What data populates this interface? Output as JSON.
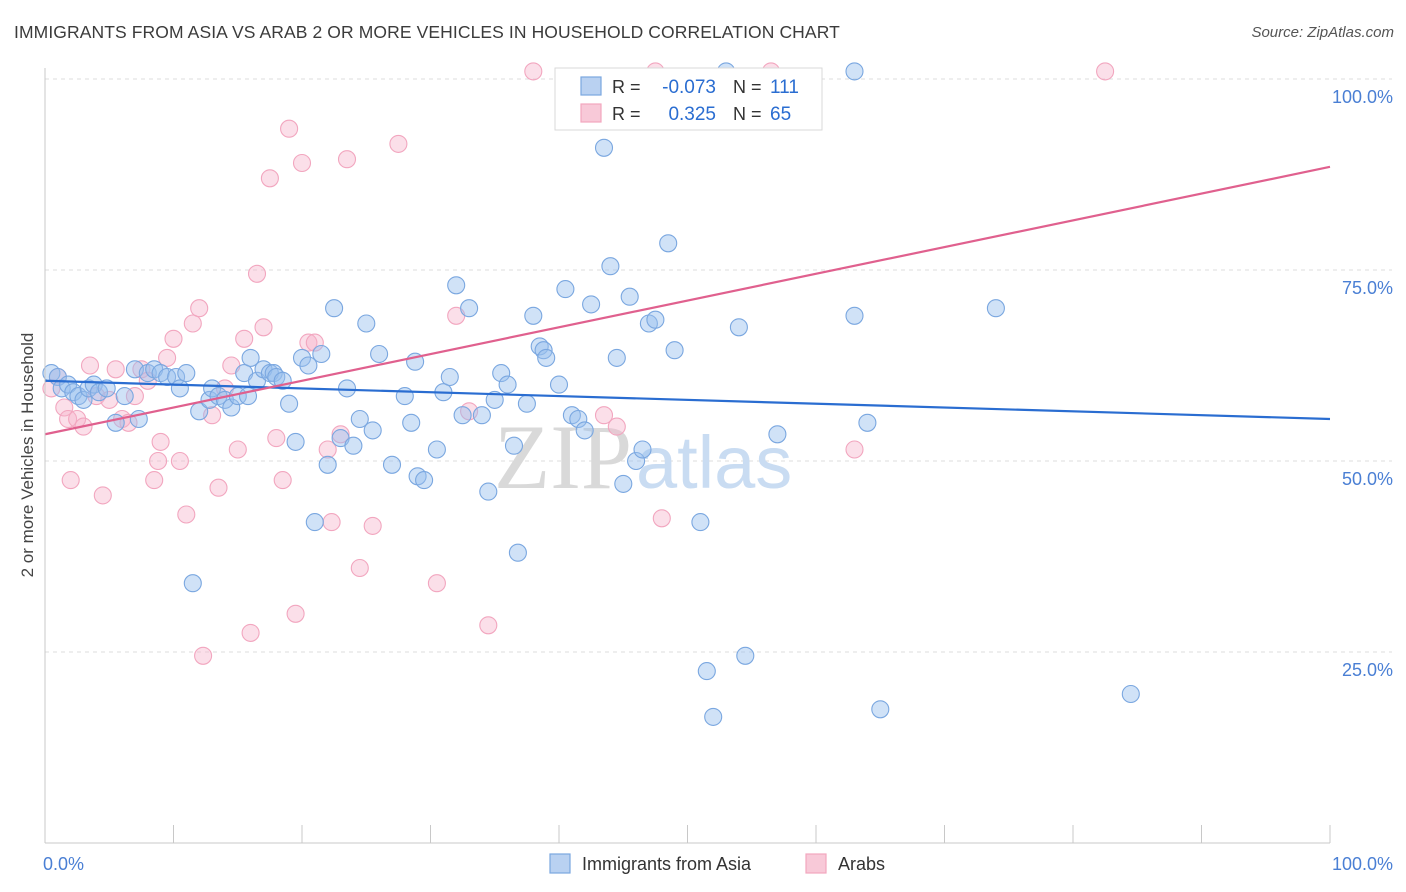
{
  "chart_data": {
    "type": "scatter",
    "title": "IMMIGRANTS FROM ASIA VS ARAB 2 OR MORE VEHICLES IN HOUSEHOLD CORRELATION CHART",
    "source": "Source: ZipAtlas.com",
    "ylabel": "2 or more Vehicles in Household",
    "xlabel": "",
    "xlim": [
      0,
      100
    ],
    "ylim": [
      0,
      100
    ],
    "x_tick_labels": [
      "0.0%",
      "100.0%"
    ],
    "y_tick_labels": [
      "100.0%",
      "75.0%",
      "50.0%",
      "25.0%"
    ],
    "y_ticks": [
      100,
      75,
      50,
      25
    ],
    "grid": true,
    "watermark": "ZIPatlas",
    "legend_top": [
      {
        "label_r": "R =",
        "r": "-0.073",
        "label_n": "N =",
        "n": "111"
      },
      {
        "label_r": "R =",
        "r": "0.325",
        "label_n": "N =",
        "n": "65"
      }
    ],
    "series": [
      {
        "name": "Immigrants from Asia",
        "color": "#7aa7e0",
        "trend_color": "#2a6dd1",
        "trend": {
          "x": [
            0,
            100
          ],
          "y": [
            60.5,
            55.5
          ]
        },
        "points": [
          [
            0.5,
            61.5
          ],
          [
            1.0,
            61.0
          ],
          [
            1.3,
            59.5
          ],
          [
            1.8,
            60.0
          ],
          [
            2.2,
            59.0
          ],
          [
            2.6,
            58.5
          ],
          [
            3.0,
            58.0
          ],
          [
            3.4,
            59.5
          ],
          [
            3.8,
            60.0
          ],
          [
            4.2,
            59.0
          ],
          [
            4.8,
            59.5
          ],
          [
            5.5,
            55.0
          ],
          [
            6.2,
            58.5
          ],
          [
            7.0,
            62.0
          ],
          [
            7.3,
            55.5
          ],
          [
            8.0,
            61.5
          ],
          [
            8.5,
            62.0
          ],
          [
            9.0,
            61.5
          ],
          [
            9.5,
            61.0
          ],
          [
            10.2,
            61.0
          ],
          [
            10.5,
            59.5
          ],
          [
            11.0,
            61.5
          ],
          [
            11.5,
            34.0
          ],
          [
            12.0,
            56.5
          ],
          [
            12.8,
            58.0
          ],
          [
            13.0,
            59.5
          ],
          [
            13.5,
            58.5
          ],
          [
            14.0,
            58.0
          ],
          [
            14.5,
            57.0
          ],
          [
            15.0,
            58.5
          ],
          [
            15.5,
            61.5
          ],
          [
            15.8,
            58.5
          ],
          [
            16.0,
            63.5
          ],
          [
            16.5,
            60.5
          ],
          [
            17.0,
            62.0
          ],
          [
            17.5,
            61.5
          ],
          [
            17.8,
            61.5
          ],
          [
            18.0,
            61.0
          ],
          [
            18.5,
            60.5
          ],
          [
            19.0,
            57.5
          ],
          [
            19.5,
            52.5
          ],
          [
            20.0,
            63.5
          ],
          [
            20.5,
            62.5
          ],
          [
            21.0,
            42.0
          ],
          [
            21.5,
            64.0
          ],
          [
            22.0,
            49.5
          ],
          [
            22.5,
            70.0
          ],
          [
            23.0,
            53.0
          ],
          [
            23.5,
            59.5
          ],
          [
            24.0,
            52.0
          ],
          [
            24.5,
            55.5
          ],
          [
            25.0,
            68.0
          ],
          [
            25.5,
            54.0
          ],
          [
            26.0,
            64.0
          ],
          [
            27.0,
            49.5
          ],
          [
            28.0,
            58.5
          ],
          [
            28.5,
            55.0
          ],
          [
            28.8,
            63.0
          ],
          [
            29.0,
            48.0
          ],
          [
            29.5,
            47.5
          ],
          [
            30.5,
            51.5
          ],
          [
            31.0,
            59.0
          ],
          [
            31.5,
            61.0
          ],
          [
            32.0,
            73.0
          ],
          [
            32.5,
            56.0
          ],
          [
            33.0,
            70.0
          ],
          [
            34.0,
            56.0
          ],
          [
            34.5,
            46.0
          ],
          [
            35.0,
            58.0
          ],
          [
            35.5,
            61.5
          ],
          [
            36.0,
            60.0
          ],
          [
            36.5,
            52.0
          ],
          [
            36.8,
            38.0
          ],
          [
            37.5,
            57.5
          ],
          [
            38.0,
            69.0
          ],
          [
            38.5,
            65.0
          ],
          [
            38.8,
            64.5
          ],
          [
            39.0,
            63.5
          ],
          [
            40.0,
            60.0
          ],
          [
            40.5,
            72.5
          ],
          [
            41.0,
            56.0
          ],
          [
            41.5,
            55.5
          ],
          [
            42.0,
            54.0
          ],
          [
            42.5,
            70.5
          ],
          [
            43.5,
            91.0
          ],
          [
            44.0,
            75.5
          ],
          [
            44.5,
            63.5
          ],
          [
            45.0,
            47.0
          ],
          [
            45.5,
            71.5
          ],
          [
            46.0,
            50.0
          ],
          [
            46.5,
            51.5
          ],
          [
            47.0,
            68.0
          ],
          [
            47.5,
            68.5
          ],
          [
            48.5,
            78.5
          ],
          [
            49.0,
            64.5
          ],
          [
            51.0,
            42.0
          ],
          [
            51.5,
            22.5
          ],
          [
            52.0,
            16.5
          ],
          [
            54.0,
            67.5
          ],
          [
            54.5,
            24.5
          ],
          [
            57.0,
            53.5
          ],
          [
            63.0,
            69.0
          ],
          [
            64.0,
            55.0
          ],
          [
            65.0,
            17.5
          ],
          [
            74.0,
            70.0
          ],
          [
            84.5,
            19.5
          ],
          [
            53.0,
            101.0
          ],
          [
            63.0,
            101.0
          ]
        ]
      },
      {
        "name": "Arabs",
        "color": "#f2a6bf",
        "trend_color": "#e0608e",
        "trend": {
          "x": [
            0,
            100
          ],
          "y": [
            53.5,
            88.5
          ]
        },
        "points": [
          [
            0.5,
            59.5
          ],
          [
            1.0,
            61.0
          ],
          [
            1.5,
            57.0
          ],
          [
            1.8,
            55.5
          ],
          [
            2.0,
            47.5
          ],
          [
            2.5,
            55.5
          ],
          [
            3.0,
            54.5
          ],
          [
            3.5,
            62.5
          ],
          [
            4.0,
            58.5
          ],
          [
            4.5,
            45.5
          ],
          [
            5.0,
            58.0
          ],
          [
            5.5,
            62.0
          ],
          [
            6.0,
            55.5
          ],
          [
            6.5,
            55.0
          ],
          [
            7.0,
            58.5
          ],
          [
            7.5,
            62.0
          ],
          [
            8.0,
            60.5
          ],
          [
            8.5,
            47.5
          ],
          [
            8.8,
            50.0
          ],
          [
            9.0,
            52.5
          ],
          [
            9.5,
            63.5
          ],
          [
            10.0,
            66.0
          ],
          [
            10.5,
            50.0
          ],
          [
            11.0,
            43.0
          ],
          [
            11.5,
            68.0
          ],
          [
            12.0,
            70.0
          ],
          [
            12.3,
            24.5
          ],
          [
            13.0,
            56.0
          ],
          [
            13.5,
            46.5
          ],
          [
            14.0,
            59.5
          ],
          [
            14.5,
            62.5
          ],
          [
            15.0,
            51.5
          ],
          [
            15.5,
            66.0
          ],
          [
            16.0,
            27.5
          ],
          [
            16.5,
            74.5
          ],
          [
            17.0,
            67.5
          ],
          [
            17.5,
            87.0
          ],
          [
            18.0,
            53.0
          ],
          [
            18.5,
            47.5
          ],
          [
            19.0,
            93.5
          ],
          [
            19.5,
            30.0
          ],
          [
            20.0,
            89.0
          ],
          [
            20.5,
            65.5
          ],
          [
            21.0,
            65.5
          ],
          [
            22.0,
            51.5
          ],
          [
            22.3,
            42.0
          ],
          [
            23.0,
            53.5
          ],
          [
            23.5,
            89.5
          ],
          [
            24.5,
            36.0
          ],
          [
            25.5,
            41.5
          ],
          [
            27.5,
            91.5
          ],
          [
            30.5,
            34.0
          ],
          [
            32.0,
            69.0
          ],
          [
            33.0,
            56.5
          ],
          [
            34.5,
            28.5
          ],
          [
            38.0,
            101.0
          ],
          [
            43.5,
            56.0
          ],
          [
            44.5,
            54.5
          ],
          [
            48.0,
            42.5
          ],
          [
            56.5,
            101.0
          ],
          [
            63.0,
            51.5
          ],
          [
            82.5,
            101.0
          ],
          [
            47.5,
            101.0
          ]
        ]
      }
    ]
  },
  "legend_bottom": [
    {
      "label": "Immigrants from Asia",
      "color": "#7aa7e0"
    },
    {
      "label": "Arabs",
      "color": "#f2a6bf"
    }
  ]
}
